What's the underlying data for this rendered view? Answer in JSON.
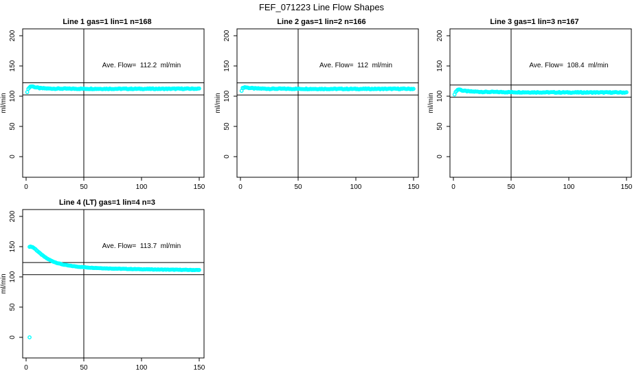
{
  "page_title": "FEF_071223  Line Flow Shapes",
  "colors": {
    "points": "#00FFFF",
    "axis": "#000000",
    "background": "#FFFFFF",
    "text": "#000000"
  },
  "chart_data": [
    {
      "type": "scatter",
      "title": "Line 1 gas=1 lin=1 n=168",
      "annotation": "Ave. Flow=  112.2  ml/min",
      "ave_flow": 112.2,
      "n": 168,
      "ref_lines": [
        122.2,
        102.2
      ],
      "vline_x": 50,
      "x_ticks": [
        0,
        50,
        100,
        150
      ],
      "y_ticks": [
        0,
        50,
        100,
        150,
        200
      ],
      "x_range": [
        0,
        150
      ],
      "y_range": [
        0,
        200
      ],
      "ylabel": "ml/min",
      "xlabel": "",
      "profile": [
        [
          1,
          107.5
        ],
        [
          2,
          112
        ],
        [
          3,
          115.5
        ],
        [
          5,
          116.5
        ],
        [
          8,
          114.8
        ],
        [
          12,
          113.2
        ],
        [
          20,
          112.6
        ],
        [
          40,
          112.3
        ],
        [
          80,
          112.2
        ],
        [
          120,
          112.2
        ],
        [
          150,
          112.4
        ]
      ],
      "n_points": 168,
      "jitter": 0.7,
      "outliers": []
    },
    {
      "type": "scatter",
      "title": "Line 2 gas=1 lin=2 n=166",
      "annotation": "Ave. Flow=  112  ml/min",
      "ave_flow": 112,
      "n": 166,
      "ref_lines": [
        122,
        102
      ],
      "vline_x": 50,
      "x_ticks": [
        0,
        50,
        100,
        150
      ],
      "y_ticks": [
        0,
        50,
        100,
        150,
        200
      ],
      "x_range": [
        0,
        150
      ],
      "y_range": [
        0,
        200
      ],
      "ylabel": "ml/min",
      "xlabel": "",
      "profile": [
        [
          1,
          109.5
        ],
        [
          2,
          113.5
        ],
        [
          4,
          115
        ],
        [
          7,
          113.8
        ],
        [
          12,
          112.8
        ],
        [
          25,
          112.3
        ],
        [
          60,
          112.1
        ],
        [
          100,
          112
        ],
        [
          150,
          112.2
        ]
      ],
      "n_points": 166,
      "jitter": 0.7,
      "outliers": []
    },
    {
      "type": "scatter",
      "title": "Line 3 gas=1 lin=3 n=167",
      "annotation": "Ave. Flow=  108.4  ml/min",
      "ave_flow": 108.4,
      "n": 167,
      "ref_lines": [
        118.4,
        98.4
      ],
      "vline_x": 50,
      "x_ticks": [
        0,
        50,
        100,
        150
      ],
      "y_ticks": [
        0,
        50,
        100,
        150,
        200
      ],
      "x_range": [
        0,
        150
      ],
      "y_range": [
        0,
        200
      ],
      "ylabel": "ml/min",
      "xlabel": "",
      "profile": [
        [
          1,
          103.5
        ],
        [
          3,
          110
        ],
        [
          5,
          111.5
        ],
        [
          8,
          109.2
        ],
        [
          14,
          107.8
        ],
        [
          28,
          107
        ],
        [
          60,
          106.5
        ],
        [
          100,
          106.2
        ],
        [
          150,
          106.2
        ]
      ],
      "n_points": 167,
      "jitter": 0.7,
      "outliers": []
    },
    {
      "type": "scatter",
      "title": "Line 4 (LT) gas=1 lin=4 n=3",
      "annotation": "Ave. Flow=  113.7  ml/min",
      "ave_flow": 113.7,
      "n": 3,
      "ref_lines": [
        123.7,
        103.7
      ],
      "vline_x": 50,
      "x_ticks": [
        0,
        50,
        100,
        150
      ],
      "y_ticks": [
        0,
        50,
        100,
        150,
        200
      ],
      "x_range": [
        0,
        150
      ],
      "y_range": [
        0,
        200
      ],
      "ylabel": "ml/min",
      "xlabel": "",
      "profile": [
        [
          3,
          150
        ],
        [
          4,
          150
        ],
        [
          5,
          149.7
        ],
        [
          6,
          148.8
        ],
        [
          8,
          146
        ],
        [
          10,
          142.5
        ],
        [
          12,
          139
        ],
        [
          15,
          134.5
        ],
        [
          18,
          130.5
        ],
        [
          22,
          126.5
        ],
        [
          26,
          123.5
        ],
        [
          31,
          120.8
        ],
        [
          37,
          118.6
        ],
        [
          45,
          116.8
        ],
        [
          55,
          115.3
        ],
        [
          70,
          114
        ],
        [
          90,
          113
        ],
        [
          110,
          112.3
        ],
        [
          130,
          111.8
        ],
        [
          150,
          111.3
        ]
      ],
      "n_points": 170,
      "jitter": 0.35,
      "outliers": [
        [
          3,
          0
        ]
      ]
    }
  ]
}
